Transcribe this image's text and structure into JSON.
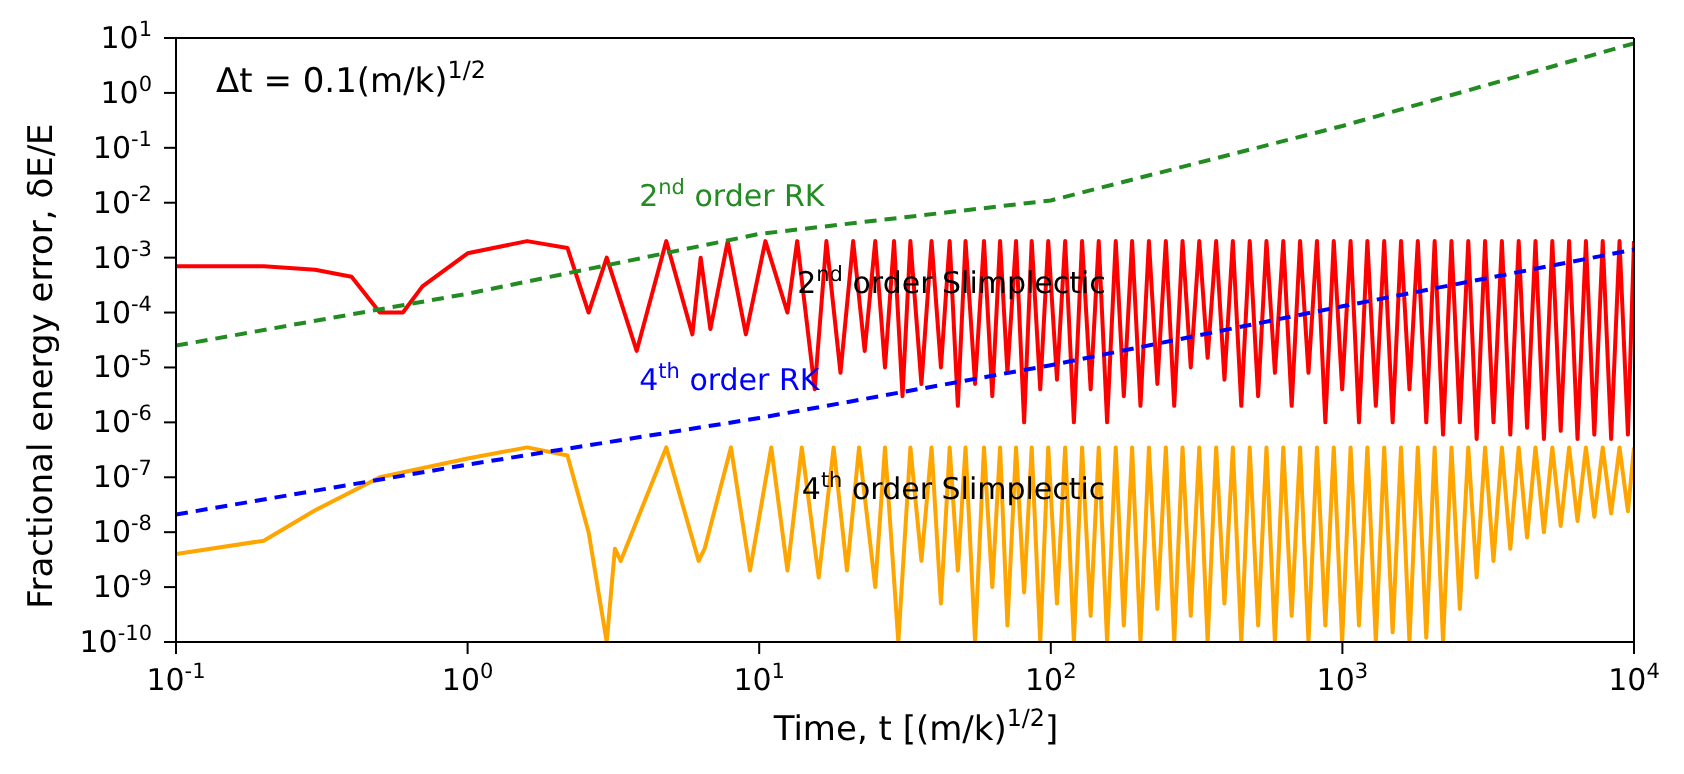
{
  "chart_data": {
    "type": "line",
    "xlabel": "Time, t [(m/k)$^{1/2}$]",
    "ylabel": "Fractional energy error, δE/E",
    "log": "xy",
    "xlim": [
      0.1,
      10000
    ],
    "xticks": [
      {
        "value": 0.1,
        "label": "10$^{-1}$"
      },
      {
        "value": 1,
        "label": "10$^{0}$"
      },
      {
        "value": 10,
        "label": "10$^{1}$"
      },
      {
        "value": 100,
        "label": "10$^{2}$"
      },
      {
        "value": 1000,
        "label": "10$^{3}$"
      },
      {
        "value": 10000,
        "label": "10$^{4}$"
      }
    ],
    "ylim": [
      1e-10,
      10
    ],
    "yticks": [
      {
        "value": 1e-10,
        "label": "10$^{-10}$"
      },
      {
        "value": 1e-09,
        "label": "10$^{-9}$"
      },
      {
        "value": 1e-08,
        "label": "10$^{-8}$"
      },
      {
        "value": 1e-07,
        "label": "10$^{-7}$"
      },
      {
        "value": 1e-06,
        "label": "10$^{-6}$"
      },
      {
        "value": 1e-05,
        "label": "10$^{-5}$"
      },
      {
        "value": 0.0001,
        "label": "10$^{-4}$"
      },
      {
        "value": 0.001,
        "label": "10$^{-3}$"
      },
      {
        "value": 0.01,
        "label": "10$^{-2}$"
      },
      {
        "value": 0.1,
        "label": "10$^{-1}$"
      },
      {
        "value": 1,
        "label": "10$^{0}$"
      },
      {
        "value": 10,
        "label": "10$^{1}$"
      }
    ],
    "series": [
      {
        "name": "2$^{nd}$ order Slimplectic",
        "color": "#ff0000",
        "line_style": "solid",
        "x": [
          0.1,
          0.2,
          0.3,
          0.4,
          0.5,
          0.6,
          0.7,
          1,
          1.6,
          2.2,
          2.6,
          3,
          3.8,
          4.8,
          5.9,
          6.3,
          6.8,
          7.8,
          9,
          10.5,
          12.5,
          13.5,
          15.5,
          17,
          19,
          21,
          23,
          25,
          27,
          29,
          31,
          33,
          36,
          39,
          42,
          45,
          48,
          51,
          55,
          59,
          63,
          67,
          71,
          76,
          81,
          86,
          92,
          98,
          105,
          112,
          120,
          128,
          137,
          146,
          156,
          167,
          178,
          190,
          203,
          217,
          232,
          248,
          265,
          283,
          302,
          323,
          345,
          369,
          394,
          421,
          450,
          481,
          514,
          549,
          587,
          627,
          670,
          716,
          765,
          818,
          874,
          934,
          998,
          1067,
          1140,
          1218,
          1302,
          1391,
          1487,
          1589,
          1698,
          1814,
          1939,
          2072,
          2214,
          2366,
          2528,
          2702,
          2887,
          3085,
          3297,
          3523,
          3765,
          4023,
          4299,
          4594,
          4910,
          5246,
          5606,
          5991,
          6402,
          6841,
          7310,
          7812,
          8348,
          8920,
          9532,
          10000
        ],
        "values": [
          0.0007,
          0.0007,
          0.0006,
          0.00045,
          0.0001,
          0.0001,
          0.0003,
          0.0012,
          0.002,
          0.0015,
          0.0001,
          0.001,
          2e-05,
          0.002,
          4e-05,
          0.001,
          5e-05,
          0.002,
          4e-05,
          0.002,
          0.0001,
          0.002,
          4e-06,
          0.002,
          8e-06,
          0.002,
          2e-05,
          0.002,
          1e-05,
          0.002,
          3e-06,
          0.002,
          5e-06,
          0.002,
          1e-05,
          0.002,
          2e-06,
          0.002,
          5e-06,
          0.002,
          3e-06,
          0.002,
          8e-06,
          0.002,
          1e-06,
          0.002,
          4e-06,
          0.002,
          6e-06,
          0.002,
          1e-06,
          0.002,
          4e-06,
          0.002,
          1e-06,
          0.002,
          3e-06,
          0.002,
          2e-06,
          0.002,
          5e-06,
          0.002,
          2e-06,
          0.002,
          1e-05,
          0.002,
          1.5e-05,
          0.002,
          6e-06,
          0.002,
          2e-06,
          0.002,
          3e-06,
          0.002,
          8e-06,
          0.002,
          2e-06,
          0.002,
          8e-06,
          0.002,
          1e-06,
          0.002,
          4e-06,
          0.002,
          1e-06,
          0.002,
          2e-06,
          0.002,
          1e-06,
          0.002,
          4e-06,
          0.002,
          1e-06,
          0.002,
          6e-07,
          0.002,
          1e-06,
          0.002,
          5e-07,
          0.002,
          1e-06,
          0.002,
          6e-07,
          0.002,
          8e-07,
          0.002,
          5e-07,
          0.002,
          7e-07,
          0.002,
          5e-07,
          0.002,
          6e-07,
          0.002,
          5e-07,
          0.002,
          6e-07,
          0.002
        ]
      },
      {
        "name": "4$^{th}$ order Slimplectic",
        "color": "#ffa500",
        "line_style": "solid",
        "x": [
          0.1,
          0.2,
          0.3,
          0.5,
          1,
          1.6,
          2.2,
          2.6,
          3,
          3.2,
          3.35,
          4.8,
          6.2,
          6.5,
          8,
          9.3,
          11,
          12.5,
          14,
          16,
          18,
          20,
          22,
          25,
          27,
          30,
          33,
          36,
          39,
          42,
          45,
          48,
          51,
          55,
          59,
          63,
          67,
          71,
          76,
          81,
          86,
          92,
          98,
          105,
          112,
          120,
          128,
          137,
          146,
          156,
          167,
          178,
          190,
          203,
          217,
          232,
          248,
          265,
          283,
          302,
          323,
          345,
          369,
          394,
          421,
          450,
          481,
          514,
          549,
          587,
          627,
          670,
          716,
          765,
          818,
          874,
          934,
          998,
          1067,
          1140,
          1218,
          1302,
          1391,
          1487,
          1589,
          1698,
          1814,
          1939,
          2072,
          2214,
          2366,
          2528,
          2702,
          2887,
          3085,
          3297,
          3523,
          3765,
          4023,
          4299,
          4594,
          4910,
          5246,
          5606,
          5991,
          6402,
          6841,
          7310,
          7812,
          8348,
          8920,
          9532,
          10000
        ],
        "values": [
          4e-09,
          7e-09,
          2.5e-08,
          1e-07,
          2.2e-07,
          3.5e-07,
          2.5e-07,
          1e-08,
          1e-10,
          5e-09,
          3e-09,
          3.5e-07,
          3e-09,
          5e-09,
          3.5e-07,
          2e-09,
          3.5e-07,
          2e-09,
          3.5e-07,
          1.5e-09,
          3.5e-07,
          2e-09,
          3.5e-07,
          1e-09,
          3.5e-07,
          1e-10,
          3.5e-07,
          3e-09,
          3.5e-07,
          5e-10,
          3.5e-07,
          2e-09,
          3.5e-07,
          1e-10,
          3.5e-07,
          1e-09,
          3.5e-07,
          2e-10,
          3.5e-07,
          8e-10,
          3.5e-07,
          1e-10,
          3.5e-07,
          5e-10,
          3.5e-07,
          1e-10,
          3.5e-07,
          3e-10,
          3.5e-07,
          1e-10,
          3.5e-07,
          2e-10,
          3.5e-07,
          1e-10,
          3.5e-07,
          4e-10,
          3.5e-07,
          1e-10,
          3.5e-07,
          3e-10,
          3.5e-07,
          1e-10,
          3.5e-07,
          5e-10,
          3.5e-07,
          1e-10,
          3.5e-07,
          2e-10,
          3.5e-07,
          1e-10,
          3.5e-07,
          3e-10,
          3.5e-07,
          1e-10,
          3.5e-07,
          2e-10,
          3.5e-07,
          1e-10,
          3.5e-07,
          2e-10,
          3.5e-07,
          1e-10,
          3.5e-07,
          1.5e-10,
          3.5e-07,
          1e-10,
          3.5e-07,
          1.2e-10,
          3.5e-07,
          1e-10,
          3.5e-07,
          4e-10,
          3.5e-07,
          1.5e-09,
          3.5e-07,
          3e-09,
          3.5e-07,
          5e-09,
          3.5e-07,
          8e-09,
          3.5e-07,
          1e-08,
          3.5e-07,
          1.3e-08,
          3.5e-07,
          1.6e-08,
          3.5e-07,
          1.9e-08,
          3.5e-07,
          2.2e-08,
          3.5e-07,
          2.4e-08,
          3.5e-07
        ]
      },
      {
        "name": "2$^{nd}$ order RK",
        "color": "#228b22",
        "line_style": "dashed",
        "x": [
          0.1,
          1,
          10,
          100,
          1000,
          10000
        ],
        "values": [
          2.5e-05,
          0.00022,
          0.0027,
          0.011,
          0.25,
          8
        ]
      },
      {
        "name": "4$^{th}$ order RK",
        "color": "#0000ff",
        "line_style": "dashed",
        "x": [
          0.1,
          1,
          10,
          100,
          1000,
          10000
        ],
        "values": [
          2.1e-08,
          1.7e-07,
          1.2e-06,
          1.1e-05,
          0.00013,
          0.0014
        ]
      }
    ],
    "annotations": [
      "Δt = 0.1(m/k)$^{1/2}$"
    ]
  }
}
